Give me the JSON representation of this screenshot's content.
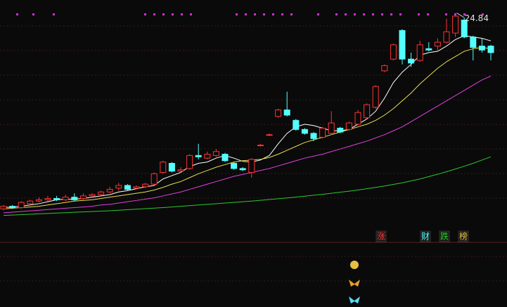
{
  "chart_data": {
    "type": "candlestick",
    "ylim": [
      7.5,
      25.3
    ],
    "open": [
      9.8,
      10.0,
      9.9,
      10.2,
      10.4,
      10.5,
      10.6,
      10.5,
      10.7,
      10.6,
      10.8,
      10.9,
      11.1,
      11.4,
      11.6,
      11.4,
      11.5,
      11.7,
      12.6,
      13.3,
      12.7,
      12.9,
      13.9,
      13.7,
      13.9,
      14.0,
      13.3,
      12.9,
      12.6,
      14.7,
      15.5,
      16.9,
      17.4,
      16.6,
      15.9,
      15.6,
      15.3,
      15.6,
      16.0,
      15.9,
      16.3,
      16.8,
      17.6,
      20.4,
      21.3,
      23.5,
      21.3,
      21.2,
      22.1,
      22.3,
      22.6,
      23.3,
      24.3,
      23.0,
      22.3,
      22.3
    ],
    "close": [
      10.0,
      9.9,
      10.3,
      10.4,
      10.5,
      10.6,
      10.5,
      10.7,
      10.5,
      10.8,
      10.9,
      11.1,
      11.3,
      11.6,
      11.3,
      11.5,
      11.7,
      12.5,
      13.4,
      12.7,
      12.8,
      13.9,
      13.8,
      14.0,
      14.2,
      13.5,
      12.9,
      12.8,
      13.6,
      14.7,
      15.5,
      17.4,
      17.0,
      15.9,
      15.6,
      15.2,
      16.0,
      16.4,
      15.7,
      16.4,
      17.2,
      17.8,
      19.2,
      20.8,
      22.4,
      21.3,
      21.0,
      22.4,
      22.0,
      22.6,
      23.4,
      24.6,
      23.0,
      22.2,
      22.0,
      21.8
    ],
    "high": [
      10.1,
      10.1,
      10.4,
      10.5,
      10.7,
      10.8,
      10.8,
      10.9,
      11.0,
      11.0,
      11.0,
      11.2,
      11.5,
      11.8,
      11.7,
      11.6,
      11.8,
      12.6,
      13.5,
      13.4,
      13.0,
      14.0,
      14.8,
      14.2,
      14.4,
      14.1,
      13.4,
      13.0,
      13.7,
      14.8,
      15.6,
      17.5,
      18.8,
      16.7,
      16.0,
      15.7,
      16.1,
      17.3,
      16.1,
      16.5,
      17.4,
      17.9,
      19.3,
      20.9,
      22.5,
      23.6,
      21.8,
      22.7,
      22.6,
      22.9,
      24.4,
      24.84,
      24.5,
      23.1,
      22.9,
      22.4
    ],
    "low": [
      9.7,
      9.8,
      9.8,
      10.1,
      10.3,
      10.4,
      10.4,
      10.4,
      10.4,
      10.5,
      10.7,
      10.8,
      11.0,
      11.2,
      11.2,
      11.3,
      11.4,
      11.6,
      12.5,
      12.6,
      12.6,
      12.8,
      13.6,
      13.6,
      13.8,
      13.4,
      12.8,
      12.7,
      12.2,
      14.6,
      15.4,
      16.8,
      16.9,
      15.8,
      15.5,
      15.0,
      15.2,
      15.5,
      15.6,
      15.8,
      16.2,
      16.7,
      17.5,
      20.3,
      21.2,
      20.9,
      20.7,
      21.1,
      21.9,
      22.0,
      22.5,
      23.0,
      22.9,
      21.2,
      21.8,
      21.2
    ],
    "up_color": "#ff3232",
    "down_color": "#54ffff",
    "series": [
      {
        "color": "#ffffff",
        "values": [
          9.9,
          9.95,
          10.0,
          10.1,
          10.2,
          10.35,
          10.5,
          10.55,
          10.55,
          10.6,
          10.7,
          10.8,
          10.9,
          11.1,
          11.2,
          11.35,
          11.5,
          11.6,
          12.1,
          12.35,
          12.6,
          13.05,
          13.3,
          13.4,
          13.7,
          13.9,
          13.7,
          13.45,
          13.4,
          13.55,
          13.9,
          14.8,
          15.6,
          16.1,
          16.3,
          16.2,
          16.0,
          15.8,
          15.8,
          15.9,
          16.3,
          16.7,
          17.3,
          18.3,
          19.5,
          20.3,
          20.9,
          21.6,
          21.8,
          21.9,
          22.3,
          22.8,
          23.1,
          23.0,
          22.9,
          22.7
        ]
      },
      {
        "color": "#e8e04a",
        "values": [
          9.8,
          9.85,
          9.9,
          9.95,
          10.0,
          10.1,
          10.2,
          10.3,
          10.4,
          10.45,
          10.5,
          10.6,
          10.7,
          10.8,
          10.9,
          11.0,
          11.1,
          11.25,
          11.45,
          11.7,
          11.9,
          12.2,
          12.5,
          12.75,
          13.0,
          13.2,
          13.4,
          13.5,
          13.55,
          13.6,
          13.75,
          14.0,
          14.3,
          14.6,
          14.9,
          15.1,
          15.3,
          15.5,
          15.7,
          15.9,
          16.1,
          16.3,
          16.6,
          17.0,
          17.5,
          18.1,
          18.7,
          19.4,
          20.0,
          20.6,
          21.1,
          21.5,
          21.9,
          22.1,
          22.2,
          22.1
        ]
      },
      {
        "color": "#e040e0",
        "values": [
          9.5,
          9.55,
          9.6,
          9.65,
          9.7,
          9.75,
          9.8,
          9.85,
          9.9,
          9.95,
          10.0,
          10.1,
          10.15,
          10.25,
          10.35,
          10.45,
          10.55,
          10.65,
          10.8,
          10.95,
          11.1,
          11.3,
          11.5,
          11.7,
          11.9,
          12.1,
          12.3,
          12.45,
          12.6,
          12.75,
          12.9,
          13.1,
          13.3,
          13.5,
          13.7,
          13.85,
          14.0,
          14.2,
          14.4,
          14.6,
          14.8,
          15.0,
          15.25,
          15.5,
          15.8,
          16.1,
          16.5,
          16.9,
          17.3,
          17.7,
          18.1,
          18.5,
          18.9,
          19.3,
          19.7,
          20.0
        ]
      },
      {
        "color": "#2ec82e",
        "values": [
          9.3,
          9.33,
          9.36,
          9.39,
          9.42,
          9.45,
          9.48,
          9.51,
          9.54,
          9.57,
          9.6,
          9.63,
          9.66,
          9.7,
          9.74,
          9.78,
          9.82,
          9.86,
          9.9,
          9.95,
          10.0,
          10.05,
          10.1,
          10.15,
          10.2,
          10.25,
          10.3,
          10.35,
          10.4,
          10.46,
          10.52,
          10.58,
          10.64,
          10.71,
          10.78,
          10.85,
          10.92,
          11.0,
          11.08,
          11.16,
          11.25,
          11.35,
          11.45,
          11.56,
          11.68,
          11.8,
          11.95,
          12.1,
          12.28,
          12.46,
          12.66,
          12.86,
          13.08,
          13.3,
          13.55,
          13.8
        ]
      }
    ],
    "annotation": "24.84",
    "annotation_index": 51,
    "tags": [
      {
        "text": "涨",
        "color": "#ff3232"
      },
      {
        "text": "财",
        "color": "#54ffff"
      },
      {
        "text": "跌",
        "color": "#2ec82e"
      },
      {
        "text": "榜",
        "color": "#e8c040"
      }
    ]
  }
}
